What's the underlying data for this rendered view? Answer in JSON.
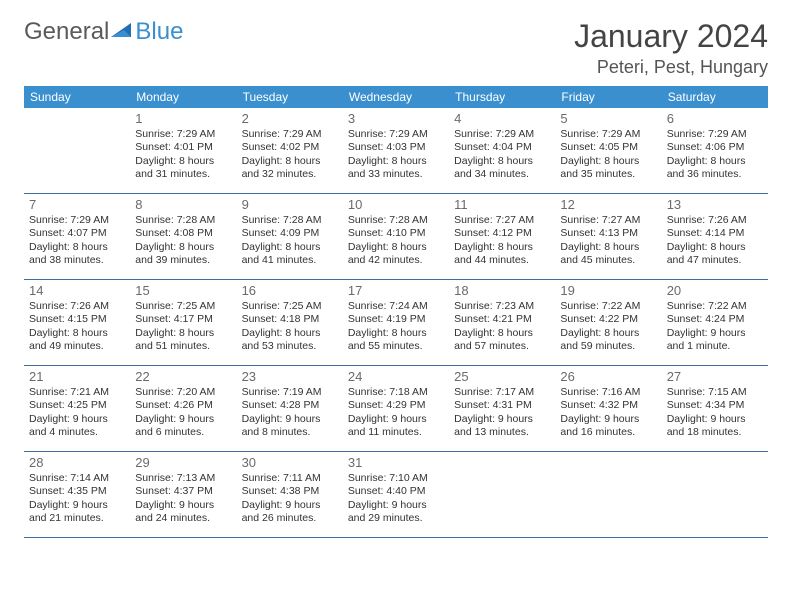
{
  "logo": {
    "word1": "General",
    "word2": "Blue"
  },
  "title": "January 2024",
  "location": "Peteri, Pest, Hungary",
  "colors": {
    "header_bg": "#3a8fcf",
    "header_text": "#ffffff",
    "border": "#3a6fa0",
    "logo_gray": "#5a5a5a",
    "logo_blue": "#3a8fcf"
  },
  "weekdays": [
    "Sunday",
    "Monday",
    "Tuesday",
    "Wednesday",
    "Thursday",
    "Friday",
    "Saturday"
  ],
  "start_offset": 1,
  "days": [
    {
      "n": "1",
      "sunrise": "Sunrise: 7:29 AM",
      "sunset": "Sunset: 4:01 PM",
      "daylight": "Daylight: 8 hours and 31 minutes."
    },
    {
      "n": "2",
      "sunrise": "Sunrise: 7:29 AM",
      "sunset": "Sunset: 4:02 PM",
      "daylight": "Daylight: 8 hours and 32 minutes."
    },
    {
      "n": "3",
      "sunrise": "Sunrise: 7:29 AM",
      "sunset": "Sunset: 4:03 PM",
      "daylight": "Daylight: 8 hours and 33 minutes."
    },
    {
      "n": "4",
      "sunrise": "Sunrise: 7:29 AM",
      "sunset": "Sunset: 4:04 PM",
      "daylight": "Daylight: 8 hours and 34 minutes."
    },
    {
      "n": "5",
      "sunrise": "Sunrise: 7:29 AM",
      "sunset": "Sunset: 4:05 PM",
      "daylight": "Daylight: 8 hours and 35 minutes."
    },
    {
      "n": "6",
      "sunrise": "Sunrise: 7:29 AM",
      "sunset": "Sunset: 4:06 PM",
      "daylight": "Daylight: 8 hours and 36 minutes."
    },
    {
      "n": "7",
      "sunrise": "Sunrise: 7:29 AM",
      "sunset": "Sunset: 4:07 PM",
      "daylight": "Daylight: 8 hours and 38 minutes."
    },
    {
      "n": "8",
      "sunrise": "Sunrise: 7:28 AM",
      "sunset": "Sunset: 4:08 PM",
      "daylight": "Daylight: 8 hours and 39 minutes."
    },
    {
      "n": "9",
      "sunrise": "Sunrise: 7:28 AM",
      "sunset": "Sunset: 4:09 PM",
      "daylight": "Daylight: 8 hours and 41 minutes."
    },
    {
      "n": "10",
      "sunrise": "Sunrise: 7:28 AM",
      "sunset": "Sunset: 4:10 PM",
      "daylight": "Daylight: 8 hours and 42 minutes."
    },
    {
      "n": "11",
      "sunrise": "Sunrise: 7:27 AM",
      "sunset": "Sunset: 4:12 PM",
      "daylight": "Daylight: 8 hours and 44 minutes."
    },
    {
      "n": "12",
      "sunrise": "Sunrise: 7:27 AM",
      "sunset": "Sunset: 4:13 PM",
      "daylight": "Daylight: 8 hours and 45 minutes."
    },
    {
      "n": "13",
      "sunrise": "Sunrise: 7:26 AM",
      "sunset": "Sunset: 4:14 PM",
      "daylight": "Daylight: 8 hours and 47 minutes."
    },
    {
      "n": "14",
      "sunrise": "Sunrise: 7:26 AM",
      "sunset": "Sunset: 4:15 PM",
      "daylight": "Daylight: 8 hours and 49 minutes."
    },
    {
      "n": "15",
      "sunrise": "Sunrise: 7:25 AM",
      "sunset": "Sunset: 4:17 PM",
      "daylight": "Daylight: 8 hours and 51 minutes."
    },
    {
      "n": "16",
      "sunrise": "Sunrise: 7:25 AM",
      "sunset": "Sunset: 4:18 PM",
      "daylight": "Daylight: 8 hours and 53 minutes."
    },
    {
      "n": "17",
      "sunrise": "Sunrise: 7:24 AM",
      "sunset": "Sunset: 4:19 PM",
      "daylight": "Daylight: 8 hours and 55 minutes."
    },
    {
      "n": "18",
      "sunrise": "Sunrise: 7:23 AM",
      "sunset": "Sunset: 4:21 PM",
      "daylight": "Daylight: 8 hours and 57 minutes."
    },
    {
      "n": "19",
      "sunrise": "Sunrise: 7:22 AM",
      "sunset": "Sunset: 4:22 PM",
      "daylight": "Daylight: 8 hours and 59 minutes."
    },
    {
      "n": "20",
      "sunrise": "Sunrise: 7:22 AM",
      "sunset": "Sunset: 4:24 PM",
      "daylight": "Daylight: 9 hours and 1 minute."
    },
    {
      "n": "21",
      "sunrise": "Sunrise: 7:21 AM",
      "sunset": "Sunset: 4:25 PM",
      "daylight": "Daylight: 9 hours and 4 minutes."
    },
    {
      "n": "22",
      "sunrise": "Sunrise: 7:20 AM",
      "sunset": "Sunset: 4:26 PM",
      "daylight": "Daylight: 9 hours and 6 minutes."
    },
    {
      "n": "23",
      "sunrise": "Sunrise: 7:19 AM",
      "sunset": "Sunset: 4:28 PM",
      "daylight": "Daylight: 9 hours and 8 minutes."
    },
    {
      "n": "24",
      "sunrise": "Sunrise: 7:18 AM",
      "sunset": "Sunset: 4:29 PM",
      "daylight": "Daylight: 9 hours and 11 minutes."
    },
    {
      "n": "25",
      "sunrise": "Sunrise: 7:17 AM",
      "sunset": "Sunset: 4:31 PM",
      "daylight": "Daylight: 9 hours and 13 minutes."
    },
    {
      "n": "26",
      "sunrise": "Sunrise: 7:16 AM",
      "sunset": "Sunset: 4:32 PM",
      "daylight": "Daylight: 9 hours and 16 minutes."
    },
    {
      "n": "27",
      "sunrise": "Sunrise: 7:15 AM",
      "sunset": "Sunset: 4:34 PM",
      "daylight": "Daylight: 9 hours and 18 minutes."
    },
    {
      "n": "28",
      "sunrise": "Sunrise: 7:14 AM",
      "sunset": "Sunset: 4:35 PM",
      "daylight": "Daylight: 9 hours and 21 minutes."
    },
    {
      "n": "29",
      "sunrise": "Sunrise: 7:13 AM",
      "sunset": "Sunset: 4:37 PM",
      "daylight": "Daylight: 9 hours and 24 minutes."
    },
    {
      "n": "30",
      "sunrise": "Sunrise: 7:11 AM",
      "sunset": "Sunset: 4:38 PM",
      "daylight": "Daylight: 9 hours and 26 minutes."
    },
    {
      "n": "31",
      "sunrise": "Sunrise: 7:10 AM",
      "sunset": "Sunset: 4:40 PM",
      "daylight": "Daylight: 9 hours and 29 minutes."
    }
  ]
}
